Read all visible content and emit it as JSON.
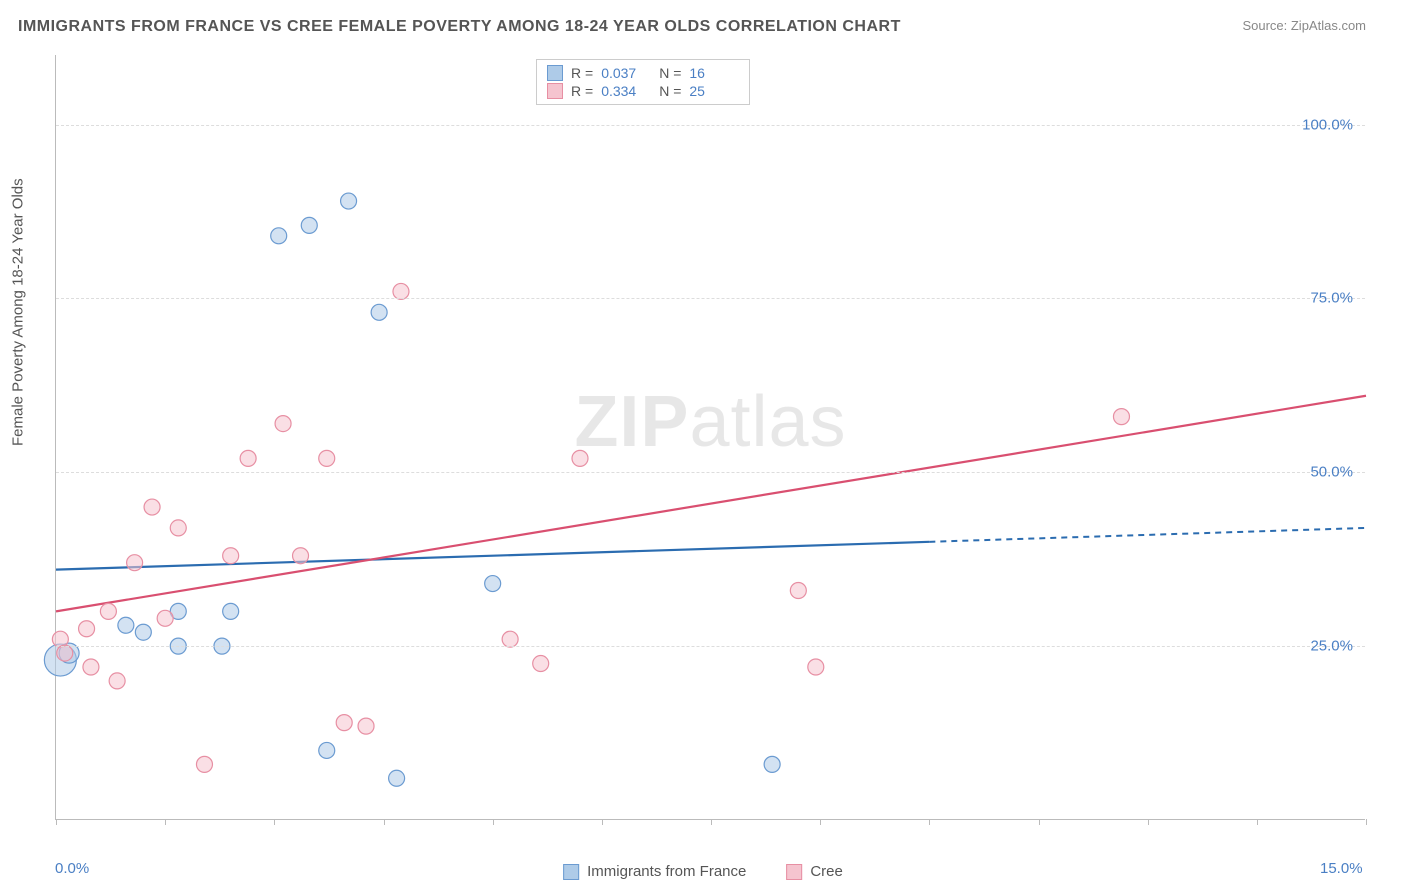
{
  "title": "IMMIGRANTS FROM FRANCE VS CREE FEMALE POVERTY AMONG 18-24 YEAR OLDS CORRELATION CHART",
  "source_label": "Source: ZipAtlas.com",
  "ylabel": "Female Poverty Among 18-24 Year Olds",
  "watermark_bold": "ZIP",
  "watermark_light": "atlas",
  "chart": {
    "type": "scatter",
    "background_color": "#ffffff",
    "grid_color": "#dddddd",
    "axis_color": "#bbbbbb",
    "tick_label_color": "#4a7fc4",
    "label_color": "#555555",
    "title_fontsize": 16,
    "label_fontsize": 15,
    "tick_fontsize": 15,
    "xlim": [
      0,
      15
    ],
    "ylim": [
      0,
      110
    ],
    "xticks": [
      0,
      1.25,
      2.5,
      3.75,
      5,
      6.25,
      7.5,
      8.75,
      10,
      11.25,
      12.5,
      13.75,
      15
    ],
    "xtick_labels": {
      "0": "0.0%",
      "15": "15.0%"
    },
    "yticks": [
      25,
      50,
      75,
      100
    ],
    "ytick_labels": {
      "25": "25.0%",
      "50": "50.0%",
      "75": "75.0%",
      "100": "100.0%"
    },
    "marker_radius": 8,
    "marker_opacity": 0.55,
    "series": [
      {
        "name": "Immigrants from France",
        "color_fill": "#aecbe8",
        "color_stroke": "#6b9bd1",
        "line_color": "#2b6cb0",
        "r_value": "0.037",
        "n_value": "16",
        "trend": {
          "x1": 0,
          "y1": 36,
          "x2": 10,
          "y2": 40,
          "x2_dash": 15,
          "y2_dash": 42
        },
        "points": [
          {
            "x": 0.05,
            "y": 23,
            "r": 16
          },
          {
            "x": 0.15,
            "y": 24,
            "r": 10
          },
          {
            "x": 0.8,
            "y": 28,
            "r": 8
          },
          {
            "x": 1.0,
            "y": 27,
            "r": 8
          },
          {
            "x": 1.4,
            "y": 25,
            "r": 8
          },
          {
            "x": 1.4,
            "y": 30,
            "r": 8
          },
          {
            "x": 1.9,
            "y": 25,
            "r": 8
          },
          {
            "x": 2.0,
            "y": 30,
            "r": 8
          },
          {
            "x": 2.55,
            "y": 84,
            "r": 8
          },
          {
            "x": 2.9,
            "y": 85.5,
            "r": 8
          },
          {
            "x": 3.1,
            "y": 10,
            "r": 8
          },
          {
            "x": 3.35,
            "y": 89,
            "r": 8
          },
          {
            "x": 3.7,
            "y": 73,
            "r": 8
          },
          {
            "x": 3.9,
            "y": 6,
            "r": 8
          },
          {
            "x": 5.0,
            "y": 34,
            "r": 8
          },
          {
            "x": 8.2,
            "y": 8,
            "r": 8
          }
        ]
      },
      {
        "name": "Cree",
        "color_fill": "#f5c4cf",
        "color_stroke": "#e78fa3",
        "line_color": "#d94f70",
        "r_value": "0.334",
        "n_value": "25",
        "trend": {
          "x1": 0,
          "y1": 30,
          "x2": 15,
          "y2": 61
        },
        "points": [
          {
            "x": 0.05,
            "y": 26,
            "r": 8
          },
          {
            "x": 0.1,
            "y": 24,
            "r": 8
          },
          {
            "x": 0.35,
            "y": 27.5,
            "r": 8
          },
          {
            "x": 0.4,
            "y": 22,
            "r": 8
          },
          {
            "x": 0.6,
            "y": 30,
            "r": 8
          },
          {
            "x": 0.7,
            "y": 20,
            "r": 8
          },
          {
            "x": 0.9,
            "y": 37,
            "r": 8
          },
          {
            "x": 1.1,
            "y": 45,
            "r": 8
          },
          {
            "x": 1.25,
            "y": 29,
            "r": 8
          },
          {
            "x": 1.4,
            "y": 42,
            "r": 8
          },
          {
            "x": 1.7,
            "y": 8,
            "r": 8
          },
          {
            "x": 2.0,
            "y": 38,
            "r": 8
          },
          {
            "x": 2.2,
            "y": 52,
            "r": 8
          },
          {
            "x": 2.6,
            "y": 57,
            "r": 8
          },
          {
            "x": 2.8,
            "y": 38,
            "r": 8
          },
          {
            "x": 3.1,
            "y": 52,
            "r": 8
          },
          {
            "x": 3.3,
            "y": 14,
            "r": 8
          },
          {
            "x": 3.55,
            "y": 13.5,
            "r": 8
          },
          {
            "x": 3.95,
            "y": 76,
            "r": 8
          },
          {
            "x": 5.2,
            "y": 26,
            "r": 8
          },
          {
            "x": 5.55,
            "y": 22.5,
            "r": 8
          },
          {
            "x": 6.0,
            "y": 52,
            "r": 8
          },
          {
            "x": 8.5,
            "y": 33,
            "r": 8
          },
          {
            "x": 8.7,
            "y": 22,
            "r": 8
          },
          {
            "x": 12.2,
            "y": 58,
            "r": 8
          }
        ]
      }
    ]
  },
  "legend_top": [
    {
      "swatch_fill": "#aecbe8",
      "swatch_stroke": "#6b9bd1",
      "r_label": "R =",
      "r_val": "0.037",
      "n_label": "N =",
      "n_val": "16"
    },
    {
      "swatch_fill": "#f5c4cf",
      "swatch_stroke": "#e78fa3",
      "r_label": "R =",
      "r_val": "0.334",
      "n_label": "N =",
      "n_val": "25"
    }
  ],
  "legend_bottom": [
    {
      "swatch_fill": "#aecbe8",
      "swatch_stroke": "#6b9bd1",
      "label": "Immigrants from France"
    },
    {
      "swatch_fill": "#f5c4cf",
      "swatch_stroke": "#e78fa3",
      "label": "Cree"
    }
  ]
}
